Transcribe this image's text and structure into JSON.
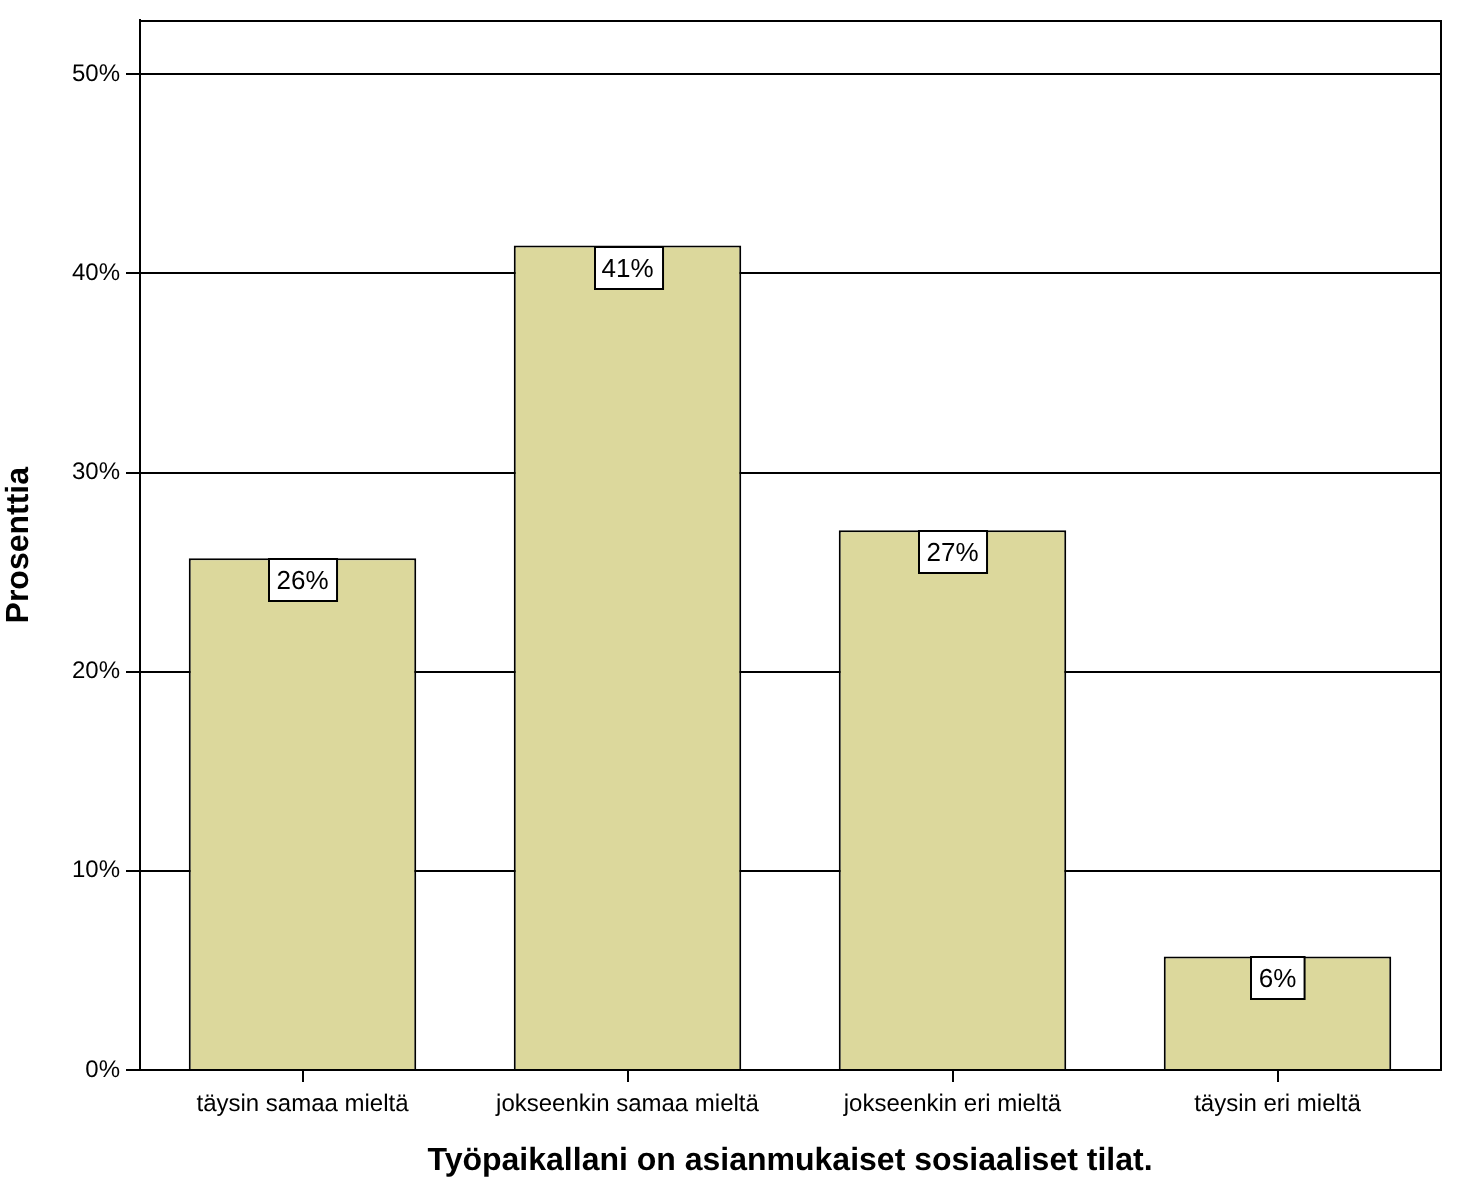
{
  "chart_data": {
    "type": "bar",
    "xlabel": "Työpaikallani on asianmukaiset sosiaaliset tilat.",
    "ylabel": "Prosenttia",
    "categories": [
      "täysin samaa mieltä",
      "jokseenkin samaa mieltä",
      "jokseenkin eri mieltä",
      "täysin eri mieltä"
    ],
    "values": [
      25.7,
      41.4,
      27.1,
      5.7
    ],
    "value_labels": [
      "26%",
      "41%",
      "27%",
      "6%"
    ],
    "color": "#dcd89c",
    "ylim": [
      0,
      52.7
    ],
    "yticks": [
      {
        "value": 0,
        "label": "0%"
      },
      {
        "value": 10,
        "label": "10%"
      },
      {
        "value": 20,
        "label": "20%"
      },
      {
        "value": 30,
        "label": "30%"
      },
      {
        "value": 40,
        "label": "40%"
      },
      {
        "value": 50,
        "label": "50%"
      }
    ],
    "grid": "y"
  }
}
